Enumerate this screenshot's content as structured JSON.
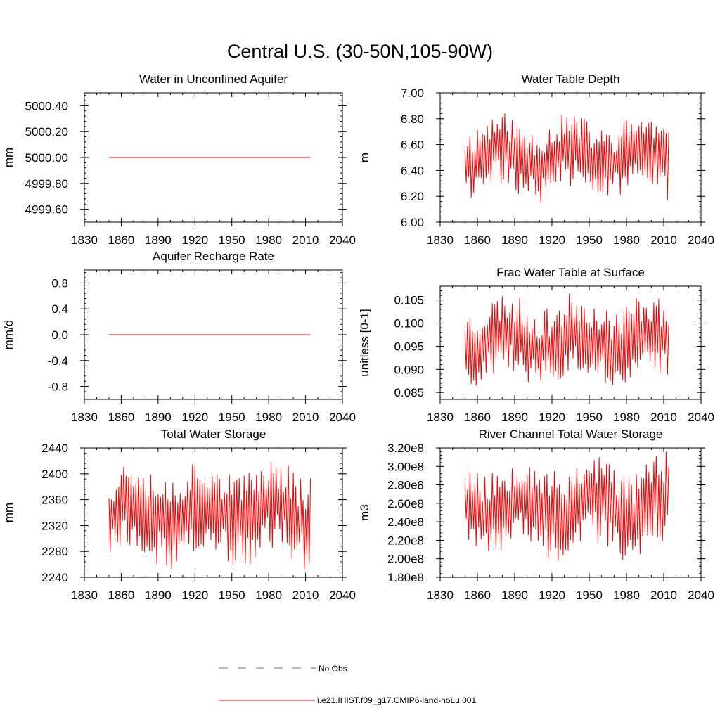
{
  "figure": {
    "title": "Central U.S. (30-50N,105-90W)",
    "legend": [
      {
        "label": "No Obs",
        "color": "#6a6ad6",
        "style": "dashed"
      },
      {
        "label": "i.e21.IHIST.f09_g17.CMIP6-land-noLu.001",
        "color": "#ff0000",
        "style": "solid"
      }
    ]
  },
  "chart_data": [
    {
      "type": "line",
      "title": "Water in Unconfined Aquifer",
      "ylabel": "mm",
      "xlim": [
        1830,
        2040
      ],
      "ylim": [
        4999.5,
        5000.5
      ],
      "xticks": [
        1830,
        1860,
        1890,
        1920,
        1950,
        1980,
        2010,
        2040
      ],
      "yticks": [
        4999.6,
        4999.8,
        5000.0,
        5000.2,
        5000.4
      ],
      "ytick_labels": [
        "4999.60",
        "4999.80",
        "5000.00",
        "5000.20",
        "5000.40"
      ],
      "series": [
        {
          "color": "#ff0000",
          "x_start": 1850,
          "x_end": 2014,
          "constant": 5000.0
        }
      ]
    },
    {
      "type": "line",
      "title": "Water Table Depth",
      "ylabel": "m",
      "xlim": [
        1830,
        2040
      ],
      "ylim": [
        6.0,
        7.0
      ],
      "xticks": [
        1830,
        1860,
        1890,
        1920,
        1950,
        1980,
        2010,
        2040
      ],
      "yticks": [
        6.0,
        6.2,
        6.4,
        6.6,
        6.8,
        7.0
      ],
      "ytick_labels": [
        "6.00",
        "6.20",
        "6.40",
        "6.60",
        "6.80",
        "7.00"
      ],
      "series": [
        {
          "color": "#ff0000",
          "x_start": 1850,
          "x_end": 2014,
          "min": 6.14,
          "max": 6.86,
          "seed": 11
        }
      ]
    },
    {
      "type": "line",
      "title": "Aquifer Recharge Rate",
      "ylabel": "mm/d",
      "xlim": [
        1830,
        2040
      ],
      "ylim": [
        -1.0,
        1.0
      ],
      "xticks": [
        1830,
        1860,
        1890,
        1920,
        1950,
        1980,
        2010,
        2040
      ],
      "yticks": [
        -0.8,
        -0.4,
        0.0,
        0.4,
        0.8
      ],
      "ytick_labels": [
        "-0.8",
        "-0.4",
        "0.0",
        "0.4",
        "0.8"
      ],
      "series": [
        {
          "color": "#ff0000",
          "x_start": 1850,
          "x_end": 2014,
          "constant": 0.0
        }
      ]
    },
    {
      "type": "line",
      "title": "Frac Water Table at Surface",
      "ylabel": "unitless [0-1]",
      "xlim": [
        1830,
        2040
      ],
      "ylim": [
        0.0835,
        0.108
      ],
      "xticks": [
        1830,
        1860,
        1890,
        1920,
        1950,
        1980,
        2010,
        2040
      ],
      "yticks": [
        0.085,
        0.09,
        0.095,
        0.1,
        0.105
      ],
      "ytick_labels": [
        "0.085",
        "0.090",
        "0.095",
        "0.100",
        "0.105"
      ],
      "series": [
        {
          "color": "#ff0000",
          "x_start": 1850,
          "x_end": 2014,
          "min": 0.0855,
          "max": 0.107,
          "seed": 23
        }
      ]
    },
    {
      "type": "line",
      "title": "Total Water Storage",
      "ylabel": "mm",
      "xlim": [
        1830,
        2040
      ],
      "ylim": [
        2240,
        2440
      ],
      "xticks": [
        1830,
        1860,
        1890,
        1920,
        1950,
        1980,
        2010,
        2040
      ],
      "yticks": [
        2240,
        2280,
        2320,
        2360,
        2400,
        2440
      ],
      "ytick_labels": [
        "2240",
        "2280",
        "2320",
        "2360",
        "2400",
        "2440"
      ],
      "series": [
        {
          "color": "#ff0000",
          "x_start": 1850,
          "x_end": 2014,
          "min": 2250,
          "max": 2432,
          "seed": 37
        }
      ]
    },
    {
      "type": "line",
      "title": "River Channel Total Water Storage",
      "ylabel": "m3",
      "xlim": [
        1830,
        2040
      ],
      "ylim": [
        180000000,
        320000000
      ],
      "xticks": [
        1830,
        1860,
        1890,
        1920,
        1950,
        1980,
        2010,
        2040
      ],
      "yticks": [
        180000000,
        200000000,
        220000000,
        240000000,
        260000000,
        280000000,
        300000000,
        320000000
      ],
      "ytick_labels": [
        "1.80e8",
        "2.00e8",
        "2.20e8",
        "2.40e8",
        "2.60e8",
        "2.80e8",
        "3.00e8",
        "3.20e8"
      ],
      "series": [
        {
          "color": "#ff0000",
          "x_start": 1850,
          "x_end": 2014,
          "min": 194000000,
          "max": 318000000,
          "seed": 53
        }
      ]
    }
  ]
}
